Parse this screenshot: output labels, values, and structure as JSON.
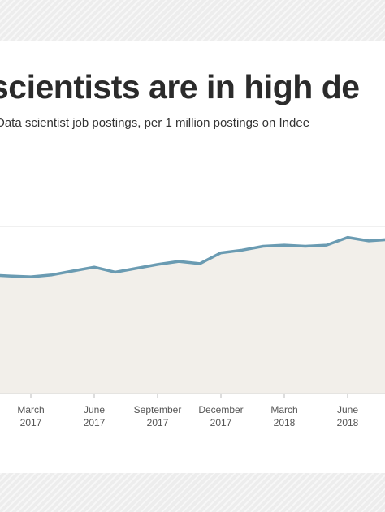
{
  "title": "scientists are in high de",
  "subtitle": "Data scientist job postings, per 1 million postings on Indee",
  "colors": {
    "line": "#6a9bb2",
    "area": "#f2efea",
    "grid": "#e0e0e0",
    "band": "#ededed"
  },
  "chart_data": {
    "type": "area",
    "title": "",
    "xlabel": "",
    "ylabel": "",
    "grid": true,
    "legend": "none",
    "x_ticks": [
      {
        "month": "March",
        "year": "2017",
        "x": "2017-03"
      },
      {
        "month": "June",
        "year": "2017",
        "x": "2017-06"
      },
      {
        "month": "September",
        "year": "2017",
        "x": "2017-09"
      },
      {
        "month": "December",
        "year": "2017",
        "x": "2017-12"
      },
      {
        "month": "March",
        "year": "2018",
        "x": "2018-03"
      },
      {
        "month": "June",
        "year": "2018",
        "x": "2018-06"
      }
    ],
    "x": [
      "2016-12",
      "2017-01",
      "2017-02",
      "2017-03",
      "2017-04",
      "2017-05",
      "2017-06",
      "2017-07",
      "2017-08",
      "2017-09",
      "2017-10",
      "2017-11",
      "2017-12",
      "2018-01",
      "2018-02",
      "2018-03",
      "2018-04",
      "2018-05",
      "2018-06",
      "2018-07",
      "2018-08"
    ],
    "series": [
      {
        "values": [
          30.8,
          30.8,
          30.5,
          30.3,
          30.8,
          31.8,
          32.8,
          31.5,
          32.5,
          33.5,
          34.3,
          33.7,
          36.5,
          37.2,
          38.2,
          38.5,
          38.2,
          38.5,
          40.5,
          39.6,
          40.0
        ]
      }
    ]
  }
}
